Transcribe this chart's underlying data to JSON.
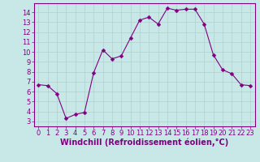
{
  "x": [
    0,
    1,
    2,
    3,
    4,
    5,
    6,
    7,
    8,
    9,
    10,
    11,
    12,
    13,
    14,
    15,
    16,
    17,
    18,
    19,
    20,
    21,
    22,
    23
  ],
  "y": [
    6.7,
    6.6,
    5.8,
    3.3,
    3.7,
    3.9,
    7.9,
    10.2,
    9.3,
    9.6,
    11.4,
    13.2,
    13.5,
    12.8,
    14.4,
    14.2,
    14.3,
    14.3,
    12.8,
    9.7,
    8.2,
    7.8,
    6.7,
    6.6
  ],
  "line_color": "#800080",
  "marker": "D",
  "marker_size": 2.5,
  "bg_color": "#c8e8e8",
  "grid_color": "#b0d0d0",
  "xlabel": "Windchill (Refroidissement éolien,°C)",
  "xlim": [
    -0.5,
    23.5
  ],
  "ylim": [
    2.5,
    14.9
  ],
  "xticks": [
    0,
    1,
    2,
    3,
    4,
    5,
    6,
    7,
    8,
    9,
    10,
    11,
    12,
    13,
    14,
    15,
    16,
    17,
    18,
    19,
    20,
    21,
    22,
    23
  ],
  "yticks": [
    3,
    4,
    5,
    6,
    7,
    8,
    9,
    10,
    11,
    12,
    13,
    14
  ],
  "axis_color": "#800080",
  "tick_font_size": 6,
  "xlabel_font_size": 7
}
